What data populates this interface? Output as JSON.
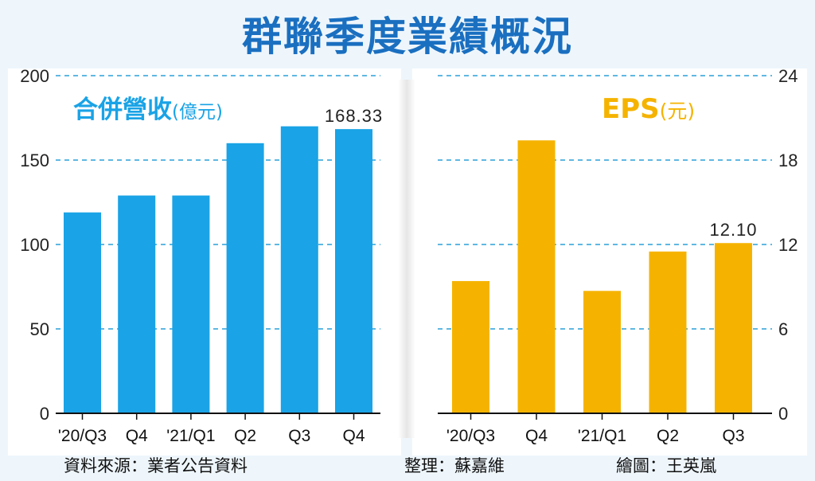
{
  "title": "群聯季度業績概況",
  "chart_data": [
    {
      "type": "bar",
      "name": "revenue",
      "title": "合併營收",
      "unit": "(億元)",
      "color": "#1aa3e6",
      "categories": [
        "'20/Q3",
        "Q4",
        "'21/Q1",
        "Q2",
        "Q3",
        "Q4"
      ],
      "values": [
        119,
        129,
        129,
        160,
        170,
        168.33
      ],
      "ylim": [
        0,
        200
      ],
      "yticks": [
        "0",
        "50",
        "100",
        "150",
        "200"
      ],
      "yaxis": "left",
      "grid": true,
      "annotation": {
        "index": 5,
        "text": "168.33"
      }
    },
    {
      "type": "bar",
      "name": "eps",
      "title": "EPS",
      "unit": "(元)",
      "color": "#f5b300",
      "categories": [
        "'20/Q3",
        "Q4",
        "'21/Q1",
        "Q2",
        "Q3"
      ],
      "values": [
        9.4,
        19.4,
        8.7,
        11.5,
        12.1
      ],
      "ylim": [
        0,
        24
      ],
      "yticks": [
        "0",
        "6",
        "12",
        "18",
        "24"
      ],
      "yaxis": "right",
      "grid": true,
      "annotation": {
        "index": 4,
        "text": "12.10"
      }
    }
  ],
  "footer": {
    "source": "資料來源：業者公告資料",
    "editor": "整理：蘇嘉維",
    "drawer": "繪圖：王英嵐"
  }
}
